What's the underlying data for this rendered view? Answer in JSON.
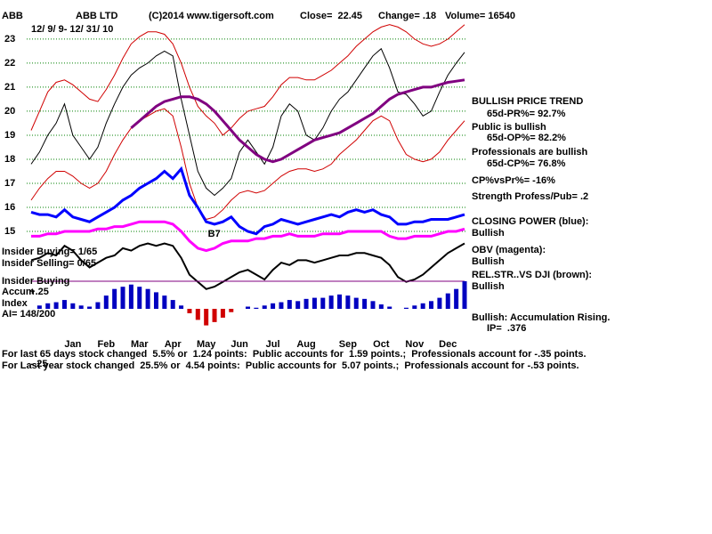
{
  "header": {
    "ticker": "ABB",
    "name": "ABB LTD",
    "copyright": "(C)2014 www.tigersoft.com",
    "close": "Close=  22.45",
    "change": "Change= .18",
    "volume": "Volume= 16540",
    "date_range": "12/ 9/ 9- 12/ 31/ 10"
  },
  "chart_data": [
    {
      "type": "line",
      "categories": [
        null,
        null,
        null,
        null,
        null,
        "Jan",
        null,
        null,
        null,
        "Feb",
        null,
        null,
        null,
        "Mar",
        null,
        null,
        null,
        "Apr",
        null,
        null,
        null,
        "May",
        null,
        null,
        null,
        "Jun",
        null,
        null,
        null,
        "Jul",
        null,
        null,
        null,
        "Aug",
        null,
        null,
        null,
        null,
        "Sep",
        null,
        null,
        null,
        "Oct",
        null,
        null,
        null,
        "Nov",
        null,
        null,
        null,
        "Dec",
        null,
        null
      ],
      "ylim": [
        12.2,
        23.7
      ],
      "yticks": [
        15,
        16,
        17,
        18,
        19,
        20,
        21,
        22,
        23
      ],
      "grid": true,
      "annotation": "B7",
      "series": [
        {
          "color": "#d00000",
          "values": [
            19.2,
            20.0,
            20.8,
            21.2,
            21.3,
            21.1,
            20.8,
            20.5,
            20.4,
            20.9,
            21.5,
            22.2,
            22.8,
            23.1,
            23.3,
            23.3,
            23.2,
            22.8,
            22.0,
            21.0,
            20.2,
            19.8,
            19.5,
            19.0,
            19.3,
            19.7,
            20.0,
            20.1,
            20.2,
            20.6,
            21.1,
            21.4,
            21.4,
            21.3,
            21.3,
            21.5,
            21.7,
            22.0,
            22.3,
            22.7,
            23.0,
            23.3,
            23.5,
            23.6,
            23.5,
            23.3,
            23.0,
            22.8,
            22.7,
            22.8,
            23.0,
            23.3,
            23.6
          ]
        },
        {
          "color": "#d00000",
          "values": [
            16.3,
            16.8,
            17.2,
            17.5,
            17.5,
            17.3,
            17.0,
            16.8,
            17.0,
            17.5,
            18.2,
            18.8,
            19.3,
            19.6,
            19.8,
            20.0,
            20.1,
            19.8,
            18.5,
            17.0,
            16.0,
            15.5,
            15.6,
            15.9,
            16.3,
            16.6,
            16.7,
            16.6,
            16.7,
            17.0,
            17.3,
            17.5,
            17.6,
            17.6,
            17.5,
            17.6,
            17.8,
            18.2,
            18.5,
            18.8,
            19.2,
            19.6,
            19.8,
            19.6,
            18.8,
            18.2,
            18.0,
            17.9,
            18.0,
            18.3,
            18.8,
            19.2,
            19.6
          ]
        },
        {
          "color": "#000000",
          "values": [
            17.8,
            18.3,
            19.0,
            19.5,
            20.3,
            19.0,
            18.5,
            18.0,
            18.5,
            19.5,
            20.3,
            21.0,
            21.5,
            21.8,
            22.0,
            22.3,
            22.5,
            22.3,
            20.5,
            19.0,
            17.5,
            16.8,
            16.5,
            16.8,
            17.2,
            18.3,
            18.8,
            18.3,
            17.8,
            18.5,
            19.8,
            20.3,
            20.0,
            19.0,
            18.8,
            19.3,
            20.0,
            20.5,
            20.8,
            21.3,
            21.8,
            22.3,
            22.6,
            21.8,
            20.8,
            20.7,
            20.3,
            19.8,
            20.0,
            20.8,
            21.5,
            22.0,
            22.45
          ]
        },
        {
          "color": "#800080",
          "values": [
            null,
            null,
            null,
            null,
            null,
            null,
            null,
            null,
            null,
            null,
            null,
            null,
            19.3,
            19.6,
            19.9,
            20.2,
            20.4,
            20.5,
            20.6,
            20.6,
            20.5,
            20.3,
            20.0,
            19.6,
            19.2,
            18.8,
            18.5,
            18.2,
            18.0,
            17.9,
            18.0,
            18.2,
            18.4,
            18.6,
            18.8,
            18.9,
            19.0,
            19.1,
            19.3,
            19.5,
            19.7,
            19.9,
            20.2,
            20.5,
            20.7,
            20.8,
            20.9,
            21.0,
            21.0,
            21.1,
            21.2,
            21.25,
            21.3
          ]
        },
        {
          "color": "#0000ff",
          "values": [
            15.8,
            15.7,
            15.7,
            15.6,
            15.9,
            15.6,
            15.5,
            15.4,
            15.6,
            15.8,
            16.0,
            16.3,
            16.5,
            16.8,
            17.0,
            17.2,
            17.5,
            17.2,
            17.6,
            16.5,
            16.0,
            15.4,
            15.3,
            15.4,
            15.6,
            15.2,
            15.0,
            14.9,
            15.2,
            15.3,
            15.5,
            15.4,
            15.3,
            15.4,
            15.5,
            15.6,
            15.7,
            15.6,
            15.8,
            15.9,
            15.8,
            15.9,
            15.7,
            15.6,
            15.3,
            15.3,
            15.4,
            15.4,
            15.5,
            15.5,
            15.5,
            15.6,
            15.7
          ]
        },
        {
          "color": "#ff00ff",
          "values": [
            14.8,
            14.8,
            14.9,
            14.9,
            15.0,
            15.0,
            15.0,
            15.0,
            15.1,
            15.1,
            15.2,
            15.2,
            15.3,
            15.4,
            15.4,
            15.4,
            15.4,
            15.3,
            15.0,
            14.6,
            14.3,
            14.2,
            14.3,
            14.5,
            14.6,
            14.6,
            14.6,
            14.7,
            14.7,
            14.8,
            14.8,
            14.9,
            14.8,
            14.8,
            14.8,
            14.9,
            14.9,
            14.9,
            15.0,
            15.0,
            15.0,
            15.0,
            15.0,
            14.8,
            14.7,
            14.7,
            14.8,
            14.8,
            14.8,
            14.9,
            15.0,
            15.0,
            15.1
          ]
        },
        {
          "color": "#000000",
          "values": [
            13.8,
            13.9,
            14.1,
            14.0,
            14.4,
            14.2,
            13.8,
            13.5,
            13.7,
            13.9,
            14.0,
            14.3,
            14.2,
            14.4,
            14.5,
            14.4,
            14.5,
            14.4,
            13.9,
            13.2,
            12.9,
            12.6,
            12.7,
            12.9,
            13.1,
            13.3,
            13.4,
            13.2,
            13.0,
            13.4,
            13.7,
            13.6,
            13.8,
            13.8,
            13.7,
            13.8,
            13.9,
            14.0,
            14.0,
            14.1,
            14.1,
            14.0,
            13.9,
            13.6,
            13.1,
            12.9,
            13.0,
            13.2,
            13.5,
            13.8,
            14.1,
            14.3,
            14.5
          ]
        }
      ]
    },
    {
      "type": "bar",
      "ylim": [
        -0.3,
        0.3
      ],
      "yticks": [
        {
          "value": 0.25,
          "label": "+.25"
        },
        {
          "value": -0.25,
          "label": "-.25"
        }
      ],
      "color": "#0000c0",
      "negative_color": "#d00000",
      "values": [
        0.0,
        0.03,
        0.05,
        0.06,
        0.08,
        0.05,
        0.03,
        0.02,
        0.06,
        0.12,
        0.18,
        0.2,
        0.22,
        0.2,
        0.18,
        0.15,
        0.12,
        0.08,
        0.03,
        -0.04,
        -0.1,
        -0.15,
        -0.12,
        -0.08,
        -0.03,
        0.0,
        0.02,
        0.01,
        0.03,
        0.05,
        0.06,
        0.08,
        0.07,
        0.09,
        0.1,
        0.1,
        0.12,
        0.13,
        0.12,
        0.1,
        0.09,
        0.07,
        0.04,
        0.02,
        0.0,
        0.01,
        0.03,
        0.05,
        0.07,
        0.1,
        0.14,
        0.18,
        0.25
      ]
    }
  ],
  "left_labels": [
    "Insider Buying= 1/65",
    "Insider Selling= 0/65",
    "Insider Buying",
    "Accum",
    "Index",
    "AI= 148/200"
  ],
  "right_annotations": [
    "BULLISH PRICE TREND",
    "65d-PR%= 92.7%",
    "Public is bullish",
    "65d-OP%= 82.2%",
    "Professionals are bullish",
    "65d-CP%= 76.8%",
    "CP%vsPr%= -16%",
    "Strength Profess/Pub= .2",
    "CLOSING POWER (blue):",
    "Bullish",
    "OBV (magenta):",
    "Bullish",
    "REL.STR..VS DJI (brown):",
    "Bullish",
    "Bullish: Accumulation Rising.",
    "IP=  .376"
  ],
  "footer": [
    "For last 65 days stock changed  5.5% or  1.24 points:  Public accounts for  1.59 points.;  Professionals account for -.35 points.",
    "For Last year stock changed  25.5% or  4.54 points:  Public accounts for  5.07 points.;  Professionals account for -.53 points."
  ]
}
